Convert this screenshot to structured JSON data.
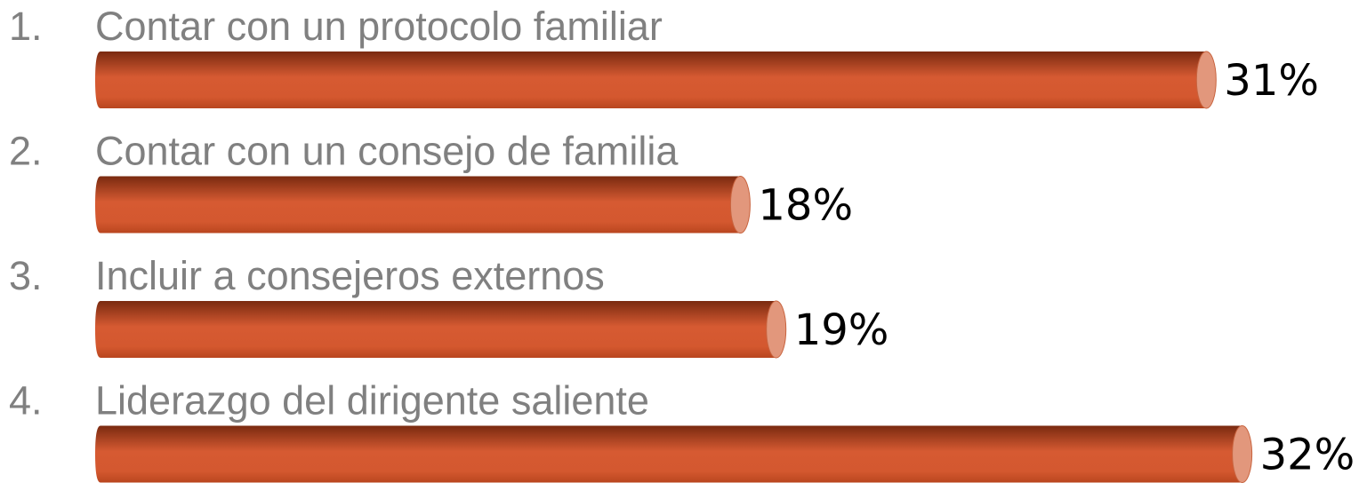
{
  "chart_data": {
    "type": "bar",
    "orientation": "horizontal",
    "list_markers": [
      "1.",
      "2.",
      "3.",
      "4."
    ],
    "categories": [
      "Contar con un protocolo familiar",
      "Contar con un consejo de familia",
      "Incluir a consejeros externos",
      "Liderazgo del dirigente saliente"
    ],
    "values": [
      31,
      18,
      19,
      32
    ],
    "value_labels": [
      "31%",
      "18%",
      "19%",
      "32%"
    ],
    "color": "#d0552e"
  }
}
